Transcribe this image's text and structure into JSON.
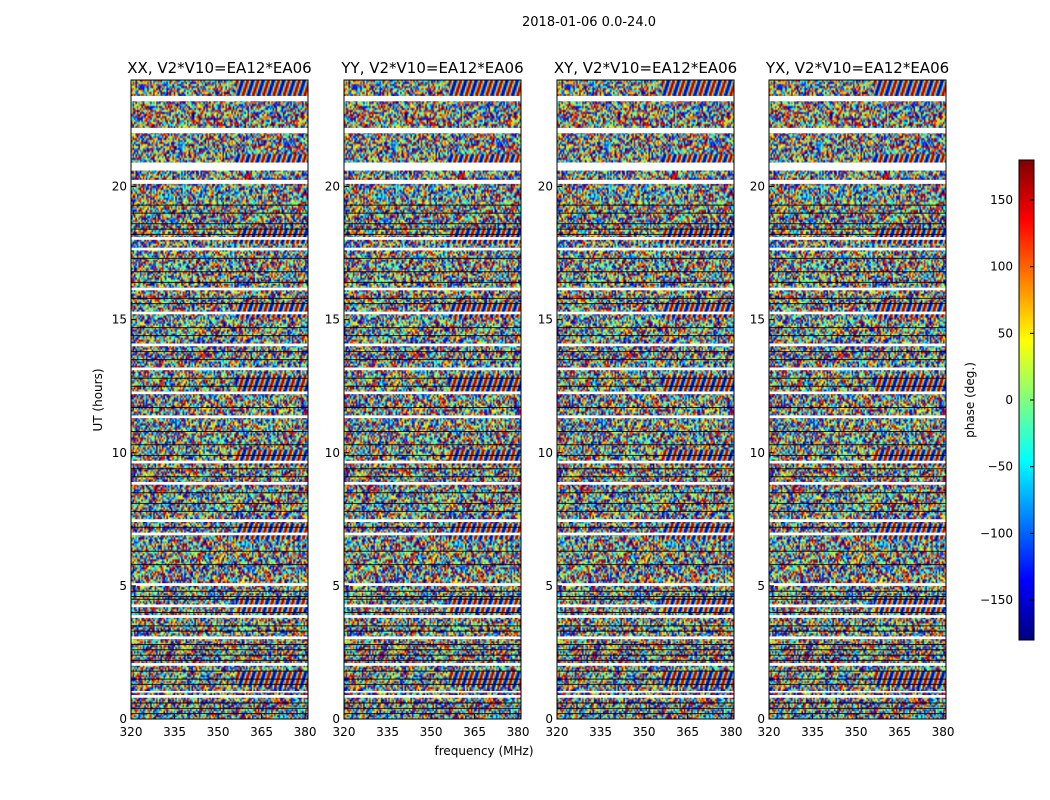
{
  "figure": {
    "suptitle": "2018-01-06 0.0-24.0"
  },
  "chart_data": {
    "type": "heatmap",
    "xlabel": "frequency (MHz)",
    "ylabel": "UT (hours)",
    "xlim": [
      320,
      381
    ],
    "ylim": [
      0,
      24
    ],
    "x_ticks": [
      320,
      335,
      350,
      365,
      380
    ],
    "y_ticks": [
      0,
      5,
      10,
      15,
      20
    ],
    "colorbar": {
      "label": "phase (deg.)",
      "range": [
        -180,
        180
      ],
      "ticks": [
        -150,
        -100,
        -50,
        0,
        50,
        100,
        150
      ],
      "colormap": "jet",
      "colors": [
        "#00007f",
        "#0000ff",
        "#007fff",
        "#00ffff",
        "#7fff7f",
        "#ffff00",
        "#ff7f00",
        "#ff0000",
        "#7f0000"
      ]
    },
    "panels": [
      {
        "title": "XX, V2*V10=EA12*EA06"
      },
      {
        "title": "YY, V2*V10=EA12*EA06"
      },
      {
        "title": "XY, V2*V10=EA12*EA06"
      },
      {
        "title": "YX, V2*V10=EA12*EA06"
      }
    ],
    "flagged_ut_hours": [
      [
        23.2,
        23.4
      ],
      [
        22.0,
        22.2
      ],
      [
        20.6,
        20.9
      ],
      [
        20.1,
        20.25
      ],
      [
        18.0,
        18.1
      ],
      [
        17.6,
        17.7
      ],
      [
        16.1,
        16.2
      ],
      [
        15.2,
        15.3
      ],
      [
        14.0,
        14.1
      ],
      [
        13.1,
        13.2
      ],
      [
        12.2,
        12.3
      ],
      [
        11.3,
        11.4
      ],
      [
        9.6,
        9.7
      ],
      [
        8.8,
        8.9
      ],
      [
        7.4,
        7.5
      ],
      [
        6.9,
        7.0
      ],
      [
        5.0,
        5.1
      ],
      [
        4.2,
        4.3
      ],
      [
        3.8,
        3.9
      ],
      [
        3.0,
        3.1
      ],
      [
        2.0,
        2.1
      ],
      [
        1.0,
        1.05
      ],
      [
        0.8,
        0.9
      ]
    ],
    "sample_lines_ut_hours": [
      19.3,
      19.0,
      18.6,
      18.4,
      18.2,
      17.3,
      16.8,
      16.4,
      15.8,
      15.6,
      14.7,
      14.4,
      13.8,
      13.5,
      12.8,
      12.5,
      11.7,
      10.8,
      10.3,
      9.9,
      9.4,
      9.1,
      8.5,
      8.1,
      7.8,
      7.2,
      6.3,
      5.8,
      4.8,
      4.6,
      4.5,
      4.0,
      3.5,
      3.3,
      2.8,
      2.6,
      2.4,
      2.2,
      1.8,
      1.5,
      1.3,
      0.6,
      0.4,
      0.2
    ]
  }
}
